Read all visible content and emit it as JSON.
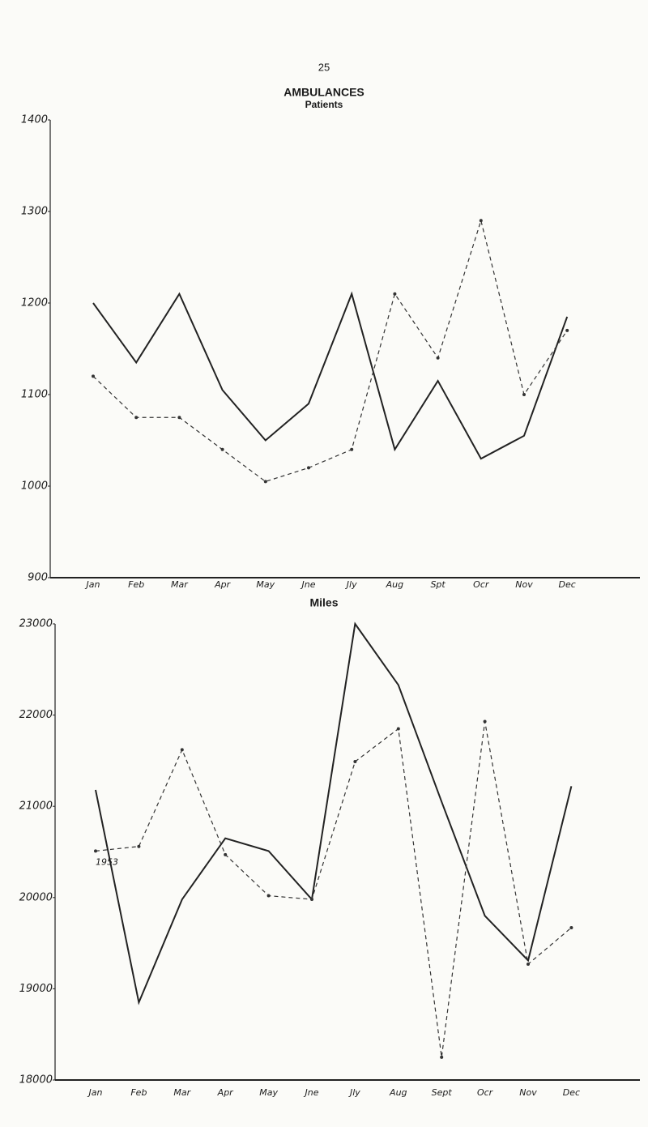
{
  "page_number": "25",
  "chart_data": [
    {
      "type": "line",
      "title": "AMBULANCES",
      "subtitle": "Patients",
      "categories": [
        "Jan",
        "Feb",
        "Mar",
        "Apr",
        "May",
        "Jne",
        "Jly",
        "Aug",
        "Spt",
        "Ocr",
        "Nov",
        "Dec"
      ],
      "series": [
        {
          "color": "#222222",
          "dash": false,
          "values": [
            1200,
            1135,
            1210,
            1105,
            1050,
            1090,
            1210,
            1040,
            1115,
            1030,
            1055,
            1185
          ]
        },
        {
          "color": "#333333",
          "dash": true,
          "values": [
            1120,
            1075,
            1075,
            1040,
            1005,
            1020,
            1040,
            1210,
            1140,
            1290,
            1100,
            1170
          ]
        }
      ],
      "ylim": [
        900,
        1400
      ],
      "yticks": [
        900,
        1000,
        1100,
        1200,
        1300,
        1400
      ],
      "grid": false
    },
    {
      "type": "line",
      "title": "Miles",
      "categories": [
        "Jan",
        "Feb",
        "Mar",
        "Apr",
        "May",
        "Jne",
        "Jly",
        "Aug",
        "Sept",
        "Ocr",
        "Nov",
        "Dec"
      ],
      "series": [
        {
          "color": "#222222",
          "dash": false,
          "values": [
            21180,
            18850,
            19980,
            20650,
            20510,
            19980,
            23000,
            22330,
            21050,
            19800,
            19310,
            21220
          ]
        },
        {
          "color": "#333333",
          "dash": true,
          "values": [
            20510,
            20560,
            21620,
            20470,
            20020,
            19980,
            21490,
            21850,
            18250,
            21930,
            19270,
            19670
          ]
        }
      ],
      "annotations": [
        "1953"
      ],
      "ylim": [
        18000,
        23000
      ],
      "yticks": [
        18000,
        19000,
        20000,
        21000,
        22000,
        23000
      ],
      "grid": false
    }
  ]
}
